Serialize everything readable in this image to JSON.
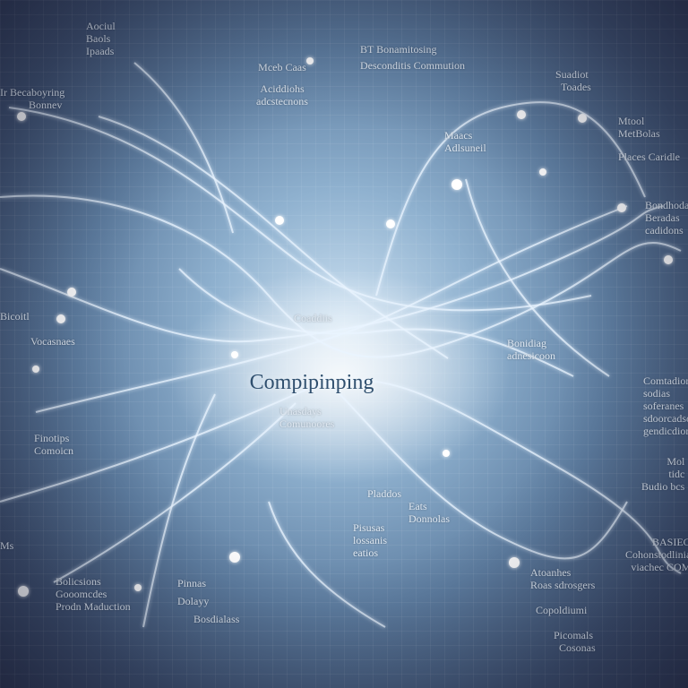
{
  "title": "Compipinping",
  "labels": {
    "top_left": [
      "Aociul",
      "Baols",
      "Ipaads"
    ],
    "left_upper": [
      "Ir Becaboyring",
      "Bonnev"
    ],
    "top_center_left": [
      "Mceb Caas",
      "Aciddiohs",
      "adcstecnons"
    ],
    "top_center": [
      "BT Bonamitosing",
      "Desconditis Commution"
    ],
    "top_right": [
      "Suadiot",
      "Toades"
    ],
    "right_upper": [
      "Mtool",
      "MetBolas"
    ],
    "right_upper2": [
      "Places Caridle"
    ],
    "center_upper": [
      "Maacs",
      "Adlsuneil"
    ],
    "right_mid": [
      "Bondhodas",
      "Beradas",
      "cadidons"
    ],
    "center": [
      "Coaddiis"
    ],
    "left_mid": [
      "Bicoitl",
      "Vocasnaes"
    ],
    "center_right": [
      "Bonidiag",
      "adnesicoon"
    ],
    "right_lower": [
      "Comtadion",
      "sodias",
      "soferanes",
      "sdoorcadsol",
      "gendicdion"
    ],
    "center_sub": [
      "Unasdays",
      "Comunoores"
    ],
    "left_lower": [
      "Finotips",
      "Comoicn"
    ],
    "right_lower2": [
      "Mol",
      "tidc",
      "Budio bcs"
    ],
    "center_lower_right": [
      "Pladdos",
      "Eats",
      "Donnolas"
    ],
    "center_bottom": [
      "Pisusas",
      "lossanis",
      "eatios"
    ],
    "left_bottom": [
      "Ms"
    ],
    "bottom_right": [
      "Atoanhes",
      "Roas sdrosgers"
    ],
    "bottom_right2": [
      "BASIEG",
      "Cohonstodlinia",
      "viachec COM"
    ],
    "bottom_left": [
      "Bolicsions",
      "Gooomcdes",
      "Prodn Maduction"
    ],
    "bottom_center": [
      "Pinnas",
      "Dolayy",
      "Bosdialass"
    ],
    "bottom_right3": [
      "Copoldiumi"
    ],
    "bottom_right4": [
      "Picomals",
      "Cosonas"
    ]
  }
}
